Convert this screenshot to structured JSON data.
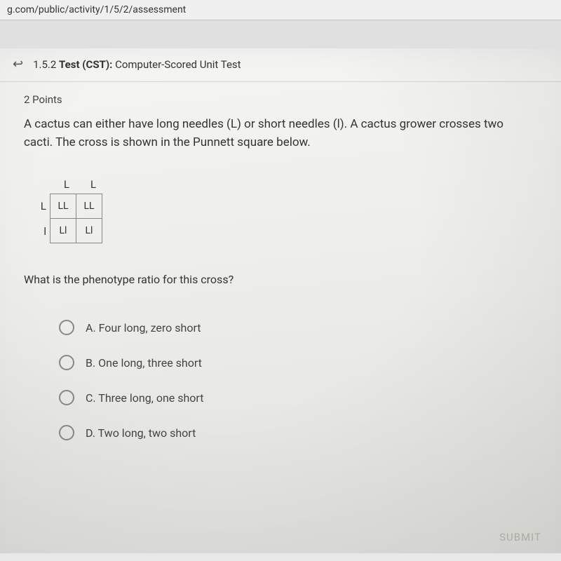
{
  "url": "g.com/public/activity/1/5/2/assessment",
  "header": {
    "number": "1.5.2",
    "label": "Test (CST):",
    "title": "Computer-Scored Unit Test"
  },
  "points": "2 Points",
  "question": "A cactus can either have long needles (L) or short needles (l). A cactus grower crosses two cacti. The cross is shown in the Punnett square below.",
  "punnett": {
    "top": [
      "L",
      "L"
    ],
    "rows": [
      {
        "label": "L",
        "cells": [
          "LL",
          "LL"
        ]
      },
      {
        "label": "l",
        "cells": [
          "Ll",
          "Ll"
        ]
      }
    ]
  },
  "sub_question": "What is the phenotype ratio for this cross?",
  "options": [
    {
      "letter": "A.",
      "text": "Four long, zero short"
    },
    {
      "letter": "B.",
      "text": "One long, three short"
    },
    {
      "letter": "C.",
      "text": "Three long, one short"
    },
    {
      "letter": "D.",
      "text": "Two long, two short"
    }
  ],
  "submit_label": "SUBMIT"
}
